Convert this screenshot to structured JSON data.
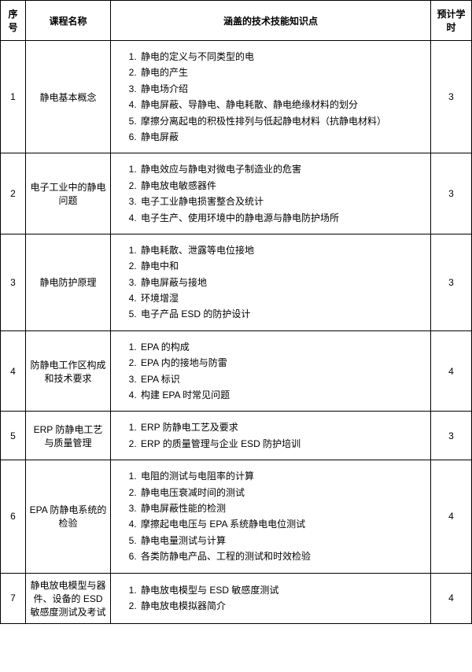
{
  "table": {
    "headers": {
      "seq": "序号",
      "name": "课程名称",
      "topics": "涵盖的技术技能知识点",
      "hours": "预计学时"
    },
    "rows": [
      {
        "seq": "1",
        "name": "静电基本概念",
        "topics": [
          "静电的定义与不同类型的电",
          "静电的产生",
          "静电场介绍",
          "静电屏蔽、导静电、静电耗散、静电绝缘材料的划分",
          "摩擦分离起电的积极性排列与低起静电材料（抗静电材料）",
          "静电屏蔽"
        ],
        "hours": "3"
      },
      {
        "seq": "2",
        "name": "电子工业中的静电问题",
        "topics": [
          "静电效应与静电对微电子制造业的危害",
          "静电放电敏感器件",
          "电子工业静电损害整合及统计",
          "电子生产、使用环境中的静电源与静电防护场所"
        ],
        "hours": "3"
      },
      {
        "seq": "3",
        "name": "静电防护原理",
        "topics": [
          "静电耗散、泄露等电位接地",
          "静电中和",
          "静电屏蔽与接地",
          "环境增湿",
          "电子产品 ESD 的防护设计"
        ],
        "hours": "3"
      },
      {
        "seq": "4",
        "name": "防静电工作区构成和技术要求",
        "topics": [
          "EPA 的构成",
          "EPA 内的接地与防雷",
          "EPA 标识",
          "构建 EPA 时常见问题"
        ],
        "hours": "4"
      },
      {
        "seq": "5",
        "name": "ERP 防静电工艺与质量管理",
        "topics": [
          "ERP 防静电工艺及要求",
          "ERP 的质量管理与企业 ESD 防护培训"
        ],
        "hours": "3"
      },
      {
        "seq": "6",
        "name": "EPA 防静电系统的检验",
        "topics": [
          "电阻的测试与电阻率的计算",
          "静电电压衰减时间的测试",
          "静电屏蔽性能的检测",
          "摩擦起电电压与 EPA 系统静电电位测试",
          "静电电量测试与计算",
          "各类防静电产品、工程的测试和时效检验"
        ],
        "hours": "4"
      },
      {
        "seq": "7",
        "name": "静电放电模型与器件、设备的 ESD 敏感度测试及考试",
        "topics": [
          "静电放电模型与 ESD 敏感度测试",
          "静电放电模拟器简介"
        ],
        "hours": "4"
      }
    ]
  }
}
